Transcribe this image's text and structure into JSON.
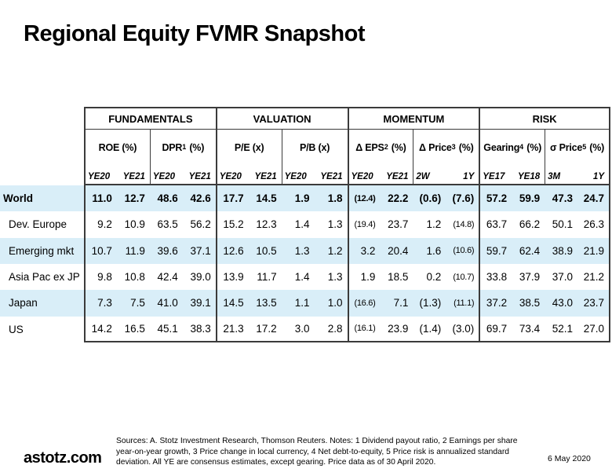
{
  "title": "Regional Equity FVMR Snapshot",
  "table": {
    "groups": [
      {
        "label": "FUNDAMENTALS",
        "metrics": [
          {
            "name": "ROE",
            "sup": "",
            "unit": "(%)",
            "cols": [
              "YE20",
              "YE21"
            ]
          },
          {
            "name": "DPR",
            "sup": "1",
            "unit": "(%)",
            "cols": [
              "YE20",
              "YE21"
            ]
          }
        ]
      },
      {
        "label": "VALUATION",
        "metrics": [
          {
            "name": "P/E",
            "sup": "",
            "unit": "(x)",
            "cols": [
              "YE20",
              "YE21"
            ]
          },
          {
            "name": "P/B",
            "sup": "",
            "unit": "(x)",
            "cols": [
              "YE20",
              "YE21"
            ]
          }
        ]
      },
      {
        "label": "MOMENTUM",
        "metrics": [
          {
            "name": "Δ EPS",
            "sup": "2",
            "unit": "(%)",
            "cols": [
              "YE20",
              "YE21"
            ]
          },
          {
            "name": "Δ Price",
            "sup": "3",
            "unit": "(%)",
            "cols": [
              "2W",
              "1Y"
            ]
          }
        ]
      },
      {
        "label": "RISK",
        "metrics": [
          {
            "name": "Gearing",
            "sup": "4",
            "unit": "(%)",
            "cols": [
              "YE17",
              "YE18"
            ]
          },
          {
            "name": "σ Price",
            "sup": "5",
            "unit": "(%)",
            "cols": [
              "3M",
              "1Y"
            ]
          }
        ]
      }
    ],
    "rows": [
      {
        "label": "World",
        "bold": true,
        "shaded": true,
        "values": [
          "11.0",
          "12.7",
          "48.6",
          "42.6",
          "17.7",
          "14.5",
          "1.9",
          "1.8",
          "(12.4)",
          "22.2",
          "(0.6)",
          "(7.6)",
          "57.2",
          "59.9",
          "47.3",
          "24.7"
        ]
      },
      {
        "label": "Dev. Europe",
        "bold": false,
        "shaded": false,
        "values": [
          "9.2",
          "10.9",
          "63.5",
          "56.2",
          "15.2",
          "12.3",
          "1.4",
          "1.3",
          "(19.4)",
          "23.7",
          "1.2",
          "(14.8)",
          "63.7",
          "66.2",
          "50.1",
          "26.3"
        ]
      },
      {
        "label": "Emerging mkt",
        "bold": false,
        "shaded": true,
        "values": [
          "10.7",
          "11.9",
          "39.6",
          "37.1",
          "12.6",
          "10.5",
          "1.3",
          "1.2",
          "3.2",
          "20.4",
          "1.6",
          "(10.6)",
          "59.7",
          "62.4",
          "38.9",
          "21.9"
        ]
      },
      {
        "label": "Asia Pac ex JP",
        "bold": false,
        "shaded": false,
        "values": [
          "9.8",
          "10.8",
          "42.4",
          "39.0",
          "13.9",
          "11.7",
          "1.4",
          "1.3",
          "1.9",
          "18.5",
          "0.2",
          "(10.7)",
          "33.8",
          "37.9",
          "37.0",
          "21.2"
        ]
      },
      {
        "label": "Japan",
        "bold": false,
        "shaded": true,
        "values": [
          "7.3",
          "7.5",
          "41.0",
          "39.1",
          "14.5",
          "13.5",
          "1.1",
          "1.0",
          "(16.6)",
          "7.1",
          "(1.3)",
          "(11.1)",
          "37.2",
          "38.5",
          "43.0",
          "23.7"
        ]
      },
      {
        "label": "US",
        "bold": false,
        "shaded": false,
        "values": [
          "14.2",
          "16.5",
          "45.1",
          "38.3",
          "21.3",
          "17.2",
          "3.0",
          "2.8",
          "(16.1)",
          "23.9",
          "(1.4)",
          "(3.0)",
          "69.7",
          "73.4",
          "52.1",
          "27.0"
        ]
      }
    ]
  },
  "footer": {
    "brand": "astotz.com",
    "sources": "Sources: A. Stotz Investment Research, Thomson Reuters. Notes: 1 Dividend payout ratio, 2 Earnings per share year-on-year growth, 3 Price change in local currency, 4 Net debt-to-equity, 5 Price risk is annualized standard deviation. All YE are consensus estimates, except gearing. Price data as of 30 April 2020.",
    "date": "6 May 2020"
  },
  "colors": {
    "row_shade": "#d9eef8",
    "border": "#3b3b3b",
    "text": "#000000",
    "background": "#ffffff"
  }
}
